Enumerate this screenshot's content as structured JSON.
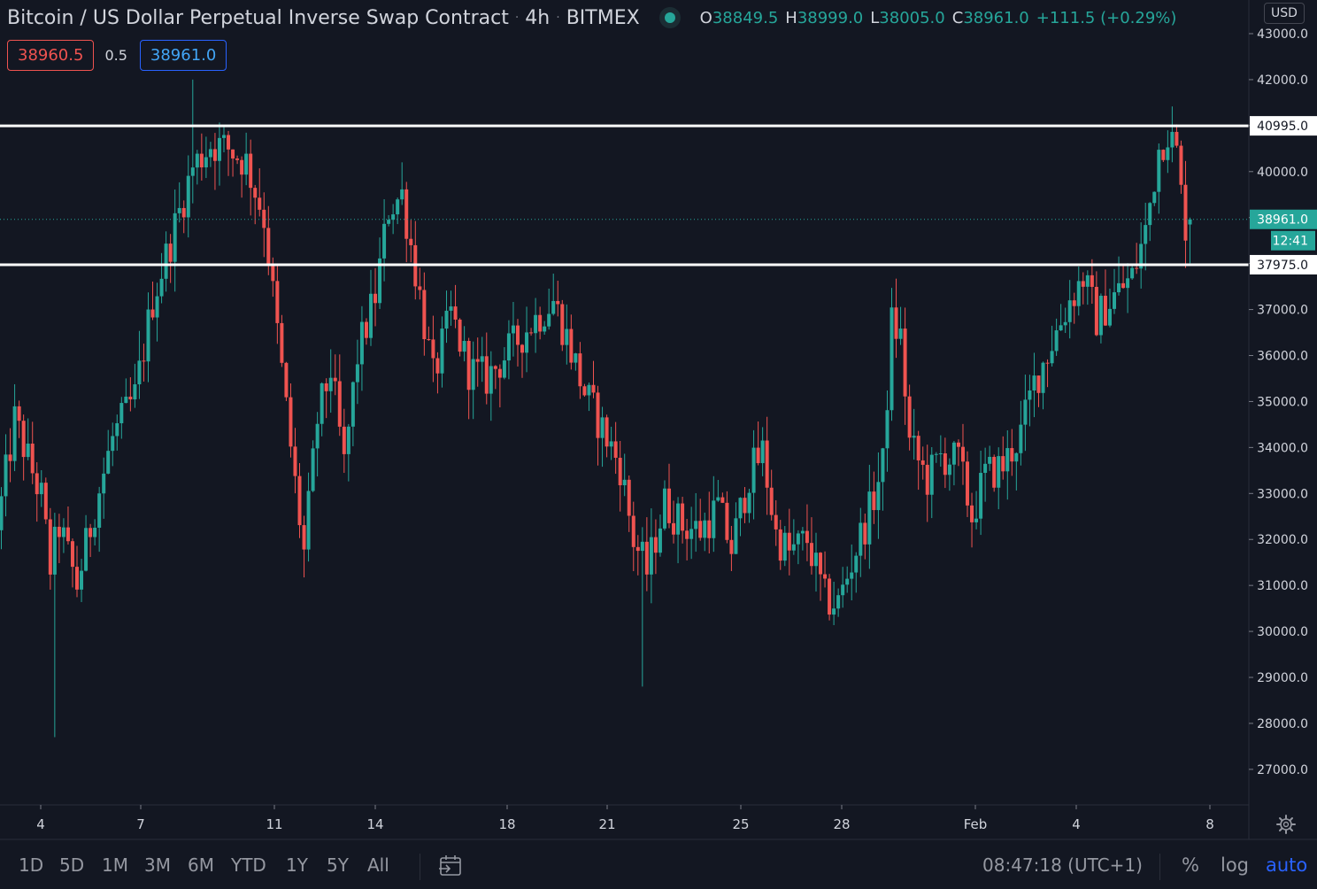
{
  "header": {
    "symbol_title": "Bitcoin / US Dollar Perpetual Inverse Swap Contract",
    "interval": "4h",
    "exchange": "BITMEX",
    "ohlc": {
      "o_label": "O",
      "o_value": "38849.5",
      "h_label": "H",
      "h_value": "38999.0",
      "l_label": "L",
      "l_value": "38005.0",
      "c_label": "C",
      "c_value": "38961.0",
      "change": "+111.5 (+0.29%)"
    }
  },
  "trade": {
    "sell_price": "38960.5",
    "spread": "0.5",
    "buy_price": "38961.0"
  },
  "price_scale": {
    "currency": "USD",
    "ticks": [
      "43000.0",
      "42000.0",
      "41000.0",
      "40000.0",
      "39000.0",
      "38000.0",
      "37000.0",
      "36000.0",
      "35000.0",
      "34000.0",
      "33000.0",
      "32000.0",
      "31000.0",
      "30000.0",
      "29000.0",
      "28000.0",
      "27000.0"
    ],
    "level_high": "40995.0",
    "level_low": "37975.0",
    "last_price": "38961.0",
    "countdown": "12:41"
  },
  "time_scale": {
    "labels": [
      "4",
      "7",
      "11",
      "14",
      "18",
      "21",
      "25",
      "28",
      "Feb",
      "4",
      "8"
    ]
  },
  "bottom_bar": {
    "timeframes": [
      "1D",
      "5D",
      "1M",
      "3M",
      "6M",
      "YTD",
      "1Y",
      "5Y",
      "All"
    ],
    "clock": "08:47:18 (UTC+1)",
    "percent": "%",
    "log": "log",
    "auto": "auto"
  },
  "colors": {
    "background": "#131722",
    "up": "#26a69a",
    "down": "#ef5350",
    "level_line": "#ffffff",
    "accent": "#2962ff"
  },
  "chart_data": {
    "type": "candlestick",
    "title": "Bitcoin / US Dollar Perpetual Inverse Swap Contract",
    "interval": "4h",
    "exchange": "BITMEX",
    "currency": "USD",
    "ylim": [
      26000,
      43500
    ],
    "horizontal_levels": [
      40995.0,
      37975.0
    ],
    "last_price": 38961.0,
    "x_labels": [
      "4",
      "7",
      "11",
      "14",
      "18",
      "21",
      "25",
      "28",
      "Feb",
      "4",
      "8"
    ],
    "anchors": [
      {
        "i": 0,
        "p": 32200
      },
      {
        "i": 4,
        "p": 34600
      },
      {
        "i": 10,
        "p": 32900
      },
      {
        "i": 12,
        "p": 31400
      },
      {
        "i": 14,
        "p": 32300
      },
      {
        "i": 18,
        "p": 31000
      },
      {
        "i": 22,
        "p": 32700
      },
      {
        "i": 26,
        "p": 34200
      },
      {
        "i": 31,
        "p": 35100
      },
      {
        "i": 35,
        "p": 37200
      },
      {
        "i": 40,
        "p": 38800
      },
      {
        "i": 44,
        "p": 40100
      },
      {
        "i": 48,
        "p": 40600
      },
      {
        "i": 52,
        "p": 40500
      },
      {
        "i": 56,
        "p": 40200
      },
      {
        "i": 60,
        "p": 39000
      },
      {
        "i": 63,
        "p": 36500
      },
      {
        "i": 67,
        "p": 33200
      },
      {
        "i": 69,
        "p": 31700
      },
      {
        "i": 72,
        "p": 34600
      },
      {
        "i": 75,
        "p": 35700
      },
      {
        "i": 78,
        "p": 33600
      },
      {
        "i": 81,
        "p": 36000
      },
      {
        "i": 85,
        "p": 37300
      },
      {
        "i": 88,
        "p": 39200
      },
      {
        "i": 91,
        "p": 39500
      },
      {
        "i": 95,
        "p": 37300
      },
      {
        "i": 98,
        "p": 35500
      },
      {
        "i": 102,
        "p": 36900
      },
      {
        "i": 106,
        "p": 35700
      },
      {
        "i": 110,
        "p": 35500
      },
      {
        "i": 115,
        "p": 36100
      },
      {
        "i": 120,
        "p": 36700
      },
      {
        "i": 125,
        "p": 37200
      },
      {
        "i": 128,
        "p": 36400
      },
      {
        "i": 132,
        "p": 35200
      },
      {
        "i": 136,
        "p": 34400
      },
      {
        "i": 140,
        "p": 33600
      },
      {
        "i": 143,
        "p": 32000
      },
      {
        "i": 146,
        "p": 31300
      },
      {
        "i": 150,
        "p": 32800
      },
      {
        "i": 154,
        "p": 32300
      },
      {
        "i": 158,
        "p": 32200
      },
      {
        "i": 162,
        "p": 32700
      },
      {
        "i": 165,
        "p": 31800
      },
      {
        "i": 169,
        "p": 33400
      },
      {
        "i": 172,
        "p": 33900
      },
      {
        "i": 175,
        "p": 32100
      },
      {
        "i": 178,
        "p": 31700
      },
      {
        "i": 182,
        "p": 32000
      },
      {
        "i": 186,
        "p": 30700
      },
      {
        "i": 189,
        "p": 30600
      },
      {
        "i": 193,
        "p": 31800
      },
      {
        "i": 196,
        "p": 32600
      },
      {
        "i": 199,
        "p": 33600
      },
      {
        "i": 201,
        "p": 36700
      },
      {
        "i": 203,
        "p": 36400
      },
      {
        "i": 205,
        "p": 34100
      },
      {
        "i": 209,
        "p": 33300
      },
      {
        "i": 212,
        "p": 33800
      },
      {
        "i": 216,
        "p": 33700
      },
      {
        "i": 219,
        "p": 32500
      },
      {
        "i": 222,
        "p": 33400
      },
      {
        "i": 226,
        "p": 33600
      },
      {
        "i": 230,
        "p": 34300
      },
      {
        "i": 233,
        "p": 35400
      },
      {
        "i": 237,
        "p": 36300
      },
      {
        "i": 241,
        "p": 37200
      },
      {
        "i": 244,
        "p": 37700
      },
      {
        "i": 247,
        "p": 36800
      },
      {
        "i": 251,
        "p": 37300
      },
      {
        "i": 255,
        "p": 37700
      },
      {
        "i": 258,
        "p": 38700
      },
      {
        "i": 261,
        "p": 40500
      },
      {
        "i": 263,
        "p": 40900
      },
      {
        "i": 265,
        "p": 40400
      },
      {
        "i": 266,
        "p": 39500
      },
      {
        "i": 267,
        "p": 38849.5
      }
    ],
    "last_candle": {
      "o": 38849.5,
      "h": 38999.0,
      "l": 38005.0,
      "c": 38961.0
    },
    "notable_extremes": {
      "low_wick_near_jan4": 27700,
      "high_wick_near_jan8": 42000,
      "low_wick_near_jan22": 28800
    }
  }
}
